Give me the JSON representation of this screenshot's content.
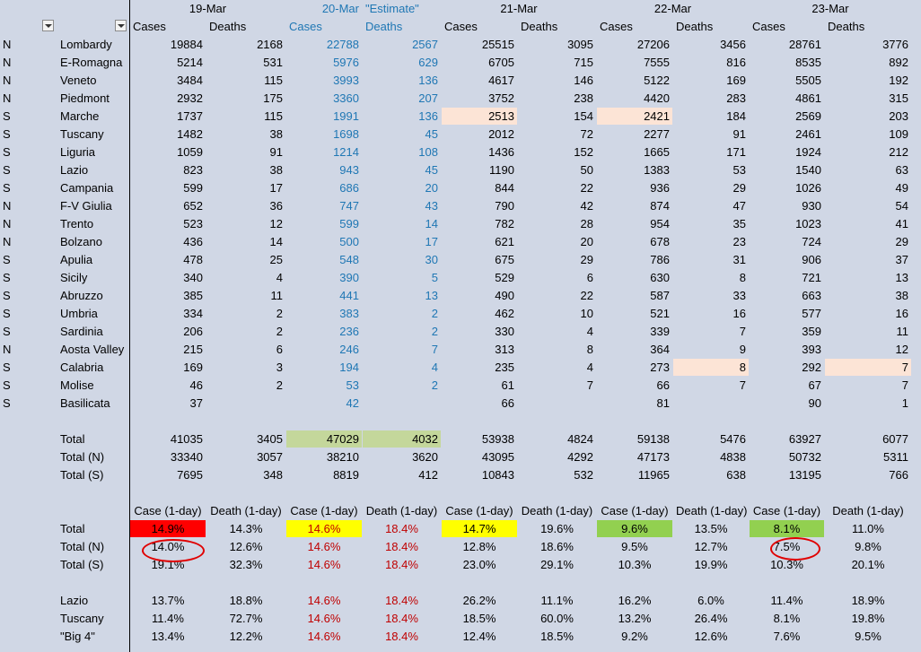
{
  "header": {
    "dates": [
      "19-Mar",
      "20-Mar",
      "\"Estimate\"",
      "21-Mar",
      "22-Mar",
      "23-Mar"
    ],
    "columns": [
      "Cases",
      "Deaths",
      "Cases",
      "Deaths",
      "Cases",
      "Deaths",
      "Cases",
      "Deaths",
      "Cases",
      "Deaths"
    ]
  },
  "regions": [
    {
      "zone": "N",
      "name": "Lombardy",
      "v": [
        "19884",
        "2168",
        "22788",
        "2567",
        "25515",
        "3095",
        "27206",
        "3456",
        "28761",
        "3776"
      ]
    },
    {
      "zone": "N",
      "name": "E-Romagna",
      "v": [
        "5214",
        "531",
        "5976",
        "629",
        "6705",
        "715",
        "7555",
        "816",
        "8535",
        "892"
      ]
    },
    {
      "zone": "N",
      "name": "Veneto",
      "v": [
        "3484",
        "115",
        "3993",
        "136",
        "4617",
        "146",
        "5122",
        "169",
        "5505",
        "192"
      ]
    },
    {
      "zone": "N",
      "name": "Piedmont",
      "v": [
        "2932",
        "175",
        "3360",
        "207",
        "3752",
        "238",
        "4420",
        "283",
        "4861",
        "315"
      ]
    },
    {
      "zone": "S",
      "name": "Marche",
      "v": [
        "1737",
        "115",
        "1991",
        "136",
        "2513",
        "154",
        "2421",
        "184",
        "2569",
        "203"
      ]
    },
    {
      "zone": "S",
      "name": "Tuscany",
      "v": [
        "1482",
        "38",
        "1698",
        "45",
        "2012",
        "72",
        "2277",
        "91",
        "2461",
        "109"
      ]
    },
    {
      "zone": "S",
      "name": "Liguria",
      "v": [
        "1059",
        "91",
        "1214",
        "108",
        "1436",
        "152",
        "1665",
        "171",
        "1924",
        "212"
      ]
    },
    {
      "zone": "S",
      "name": "Lazio",
      "v": [
        "823",
        "38",
        "943",
        "45",
        "1190",
        "50",
        "1383",
        "53",
        "1540",
        "63"
      ]
    },
    {
      "zone": "S",
      "name": "Campania",
      "v": [
        "599",
        "17",
        "686",
        "20",
        "844",
        "22",
        "936",
        "29",
        "1026",
        "49"
      ]
    },
    {
      "zone": "N",
      "name": "F-V Giulia",
      "v": [
        "652",
        "36",
        "747",
        "43",
        "790",
        "42",
        "874",
        "47",
        "930",
        "54"
      ]
    },
    {
      "zone": "N",
      "name": "Trento",
      "v": [
        "523",
        "12",
        "599",
        "14",
        "782",
        "28",
        "954",
        "35",
        "1023",
        "41"
      ]
    },
    {
      "zone": "N",
      "name": "Bolzano",
      "v": [
        "436",
        "14",
        "500",
        "17",
        "621",
        "20",
        "678",
        "23",
        "724",
        "29"
      ]
    },
    {
      "zone": "S",
      "name": "Apulia",
      "v": [
        "478",
        "25",
        "548",
        "30",
        "675",
        "29",
        "786",
        "31",
        "906",
        "37"
      ]
    },
    {
      "zone": "S",
      "name": "Sicily",
      "v": [
        "340",
        "4",
        "390",
        "5",
        "529",
        "6",
        "630",
        "8",
        "721",
        "13"
      ]
    },
    {
      "zone": "S",
      "name": "Abruzzo",
      "v": [
        "385",
        "11",
        "441",
        "13",
        "490",
        "22",
        "587",
        "33",
        "663",
        "38"
      ]
    },
    {
      "zone": "S",
      "name": "Umbria",
      "v": [
        "334",
        "2",
        "383",
        "2",
        "462",
        "10",
        "521",
        "16",
        "577",
        "16"
      ]
    },
    {
      "zone": "S",
      "name": "Sardinia",
      "v": [
        "206",
        "2",
        "236",
        "2",
        "330",
        "4",
        "339",
        "7",
        "359",
        "11"
      ]
    },
    {
      "zone": "N",
      "name": "Aosta Valley",
      "v": [
        "215",
        "6",
        "246",
        "7",
        "313",
        "8",
        "364",
        "9",
        "393",
        "12"
      ]
    },
    {
      "zone": "S",
      "name": "Calabria",
      "v": [
        "169",
        "3",
        "194",
        "4",
        "235",
        "4",
        "273",
        "8",
        "292",
        "7"
      ]
    },
    {
      "zone": "S",
      "name": "Molise",
      "v": [
        "46",
        "2",
        "53",
        "2",
        "61",
        "7",
        "66",
        "7",
        "67",
        "7"
      ]
    },
    {
      "zone": "S",
      "name": "Basilicata",
      "v": [
        "37",
        "",
        "42",
        "",
        "66",
        "",
        "81",
        "",
        "90",
        "1"
      ]
    }
  ],
  "totals": [
    {
      "name": "Total",
      "v": [
        "41035",
        "3405",
        "47029",
        "4032",
        "53938",
        "4824",
        "59138",
        "5476",
        "63927",
        "6077"
      ]
    },
    {
      "name": "Total (N)",
      "v": [
        "33340",
        "3057",
        "38210",
        "3620",
        "43095",
        "4292",
        "47173",
        "4838",
        "50732",
        "5311"
      ]
    },
    {
      "name": "Total (S)",
      "v": [
        "7695",
        "348",
        "8819",
        "412",
        "10843",
        "532",
        "11965",
        "638",
        "13195",
        "766"
      ]
    }
  ],
  "growth_header": [
    "Case (1-day)",
    "Death (1-day)",
    "Case (1-day)",
    "Death (1-day)",
    "Case (1-day)",
    "Death (1-day)",
    "Case (1-day)",
    "Death (1-day)",
    "Case (1-day)",
    "Death (1-day)"
  ],
  "growth": [
    {
      "name": "Total",
      "v": [
        "14.9%",
        "14.3%",
        "14.6%",
        "18.4%",
        "14.7%",
        "19.6%",
        "9.6%",
        "13.5%",
        "8.1%",
        "11.0%"
      ]
    },
    {
      "name": "Total (N)",
      "v": [
        "14.0%",
        "12.6%",
        "14.6%",
        "18.4%",
        "12.8%",
        "18.6%",
        "9.5%",
        "12.7%",
        "7.5%",
        "9.8%"
      ]
    },
    {
      "name": "Total (S)",
      "v": [
        "19.1%",
        "32.3%",
        "14.6%",
        "18.4%",
        "23.0%",
        "29.1%",
        "10.3%",
        "19.9%",
        "10.3%",
        "20.1%"
      ]
    }
  ],
  "regional_growth": [
    {
      "name": "Lazio",
      "v": [
        "13.7%",
        "18.8%",
        "14.6%",
        "18.4%",
        "26.2%",
        "11.1%",
        "16.2%",
        "6.0%",
        "11.4%",
        "18.9%"
      ]
    },
    {
      "name": "Tuscany",
      "v": [
        "11.4%",
        "72.7%",
        "14.6%",
        "18.4%",
        "18.5%",
        "60.0%",
        "13.2%",
        "26.4%",
        "8.1%",
        "19.8%"
      ]
    },
    {
      "name": "\"Big 4\"",
      "v": [
        "13.4%",
        "12.2%",
        "14.6%",
        "18.4%",
        "12.4%",
        "18.5%",
        "9.2%",
        "12.6%",
        "7.6%",
        "9.5%"
      ]
    }
  ],
  "colors": {
    "estimate_text": "#1f77b4",
    "estimate_pct": "#c00000",
    "highlight_peach": "#fce4d6",
    "highlight_green": "#c4d79b",
    "fill_red": "#ff0000",
    "fill_yellow": "#ffff00",
    "fill_lime": "#92d050",
    "annotation_circle": "#e00000"
  },
  "icons": [
    "filter-dropdown-icon",
    "filter-dropdown-icon"
  ]
}
